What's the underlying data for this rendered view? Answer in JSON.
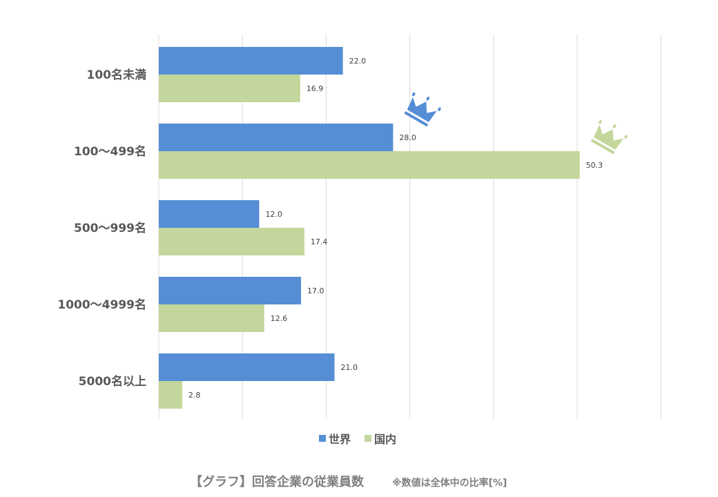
{
  "chart_data": {
    "type": "bar",
    "orientation": "horizontal",
    "categories": [
      "100名未満",
      "100～499名",
      "500～999名",
      "1000～4999名",
      "5000名以上"
    ],
    "series": [
      {
        "name": "世界",
        "color": "#558ed5",
        "values": [
          22.0,
          28.0,
          12.0,
          17.0,
          21.0
        ]
      },
      {
        "name": "国内",
        "color": "#c3d69b",
        "values": [
          16.9,
          50.3,
          17.4,
          12.6,
          2.8
        ]
      }
    ],
    "xlim": [
      0,
      60
    ],
    "grid": true,
    "legend": "bottom",
    "annotations": [
      {
        "type": "crown-icon",
        "series": "世界",
        "category": "100～499名"
      },
      {
        "type": "crown-icon",
        "series": "国内",
        "category": "100～499名"
      }
    ],
    "title": "【グラフ】回答企業の従業員数",
    "note": "※数値は全体中の比率[%]"
  }
}
